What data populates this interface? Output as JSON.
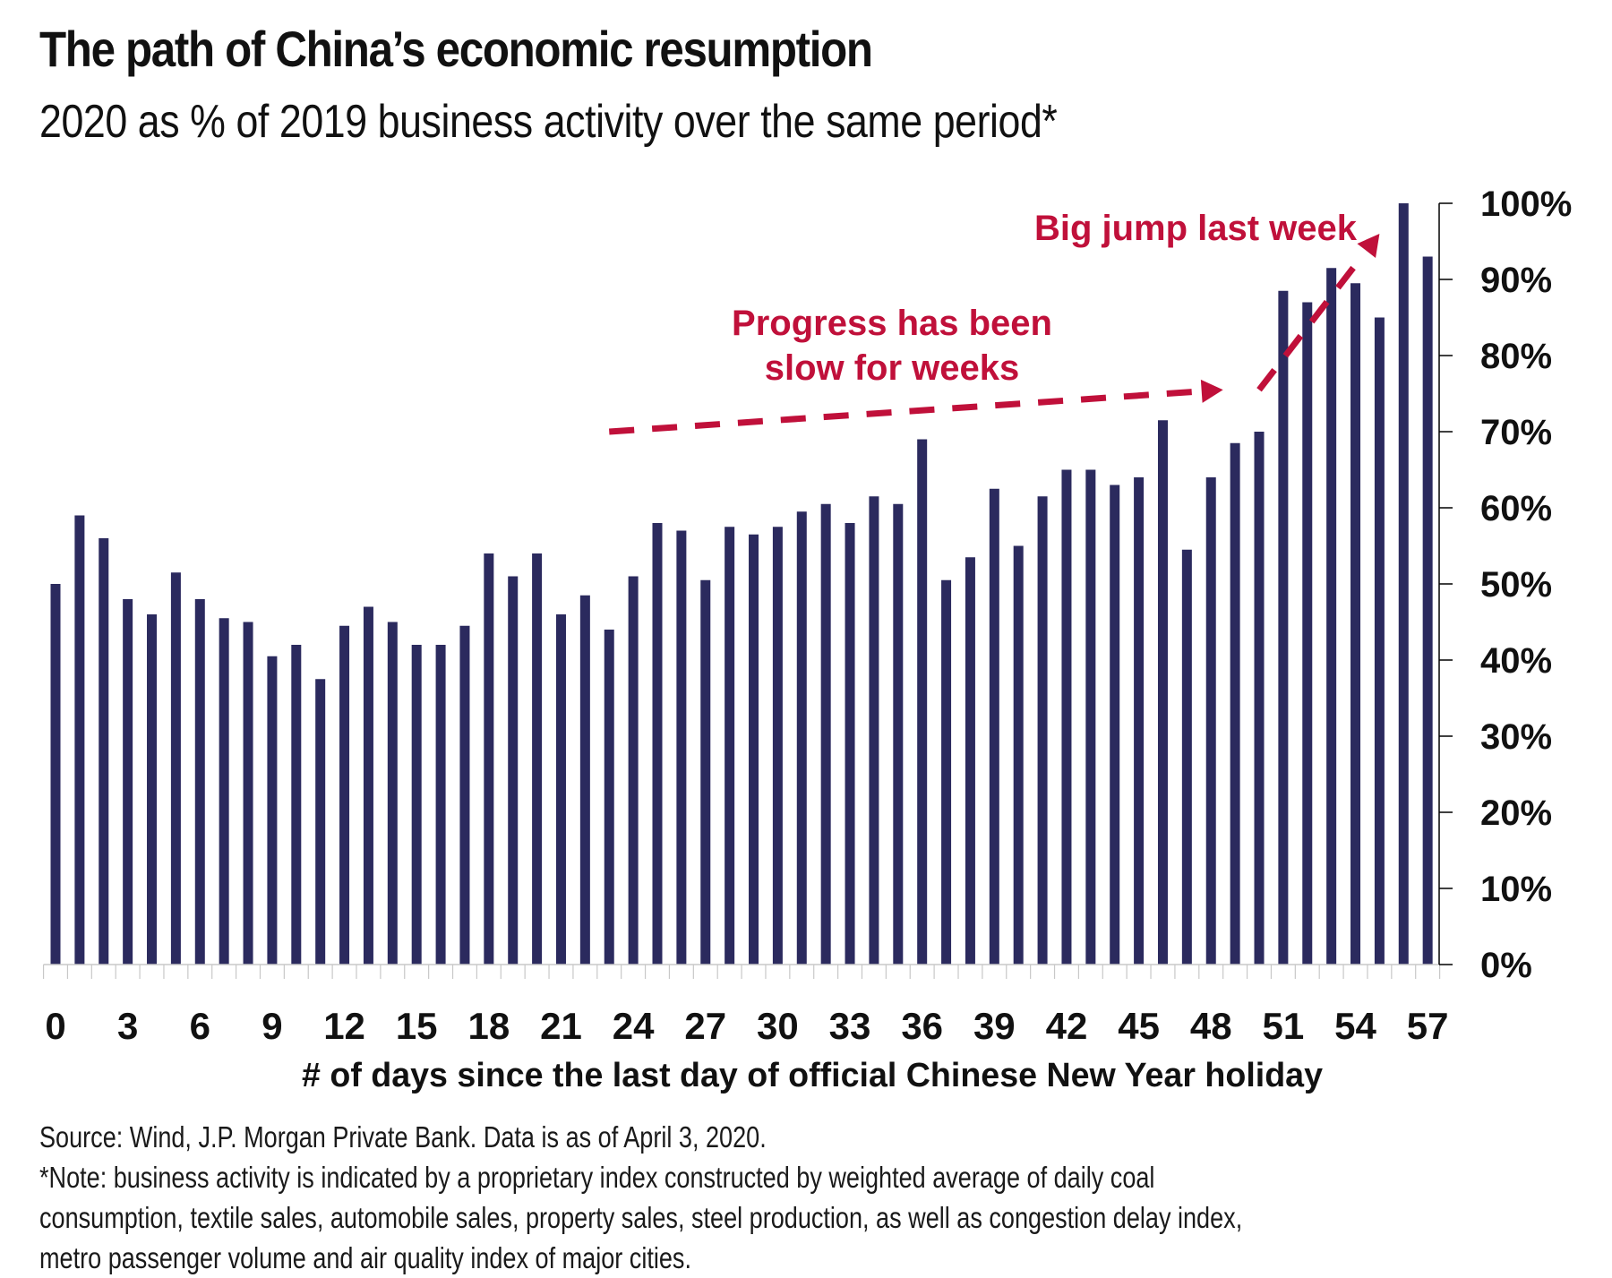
{
  "header": {
    "title": "The path of China’s economic resumption",
    "subtitle": "2020 as % of 2019 business activity over the same period*"
  },
  "colors": {
    "bar": "#2b2a5e",
    "annotation": "#c0103a",
    "axis": "#000000",
    "tick_minor": "#c8c8c8"
  },
  "chart_data": {
    "type": "bar",
    "title": "The path of China’s economic resumption",
    "subtitle": "2020 as % of 2019 business activity over the same period*",
    "xlabel": "# of days since the last day of official Chinese New Year holiday",
    "ylabel": "",
    "y_axis_side": "right",
    "ylim": [
      0,
      100
    ],
    "y_ticks": [
      0,
      10,
      20,
      30,
      40,
      50,
      60,
      70,
      80,
      90,
      100
    ],
    "y_tick_labels": [
      "0%",
      "10%",
      "20%",
      "30%",
      "40%",
      "50%",
      "60%",
      "70%",
      "80%",
      "90%",
      "100%"
    ],
    "x_tick_labels": [
      "0",
      "3",
      "6",
      "9",
      "12",
      "15",
      "18",
      "21",
      "24",
      "27",
      "30",
      "33",
      "36",
      "39",
      "42",
      "45",
      "48",
      "51",
      "54",
      "57"
    ],
    "x_tick_step": 3,
    "grid": false,
    "legend": "none",
    "categories": [
      0,
      1,
      2,
      3,
      4,
      5,
      6,
      7,
      8,
      9,
      10,
      11,
      12,
      13,
      14,
      15,
      16,
      17,
      18,
      19,
      20,
      21,
      22,
      23,
      24,
      25,
      26,
      27,
      28,
      29,
      30,
      31,
      32,
      33,
      34,
      35,
      36,
      37,
      38,
      39,
      40,
      41,
      42,
      43,
      44,
      45,
      46,
      47,
      48,
      49,
      50,
      51,
      52,
      53,
      54,
      55,
      56,
      57
    ],
    "values": [
      50,
      59,
      56,
      48,
      46,
      51.5,
      48,
      45.5,
      45,
      40.5,
      42,
      37.5,
      44.5,
      47,
      45,
      42,
      42,
      44.5,
      54,
      51,
      54,
      46,
      48.5,
      44,
      51,
      58,
      57,
      50.5,
      57.5,
      56.5,
      57.5,
      59.5,
      60.5,
      58,
      61.5,
      60.5,
      69,
      50.5,
      53.5,
      62.5,
      55,
      61.5,
      65,
      65,
      63,
      64,
      71.5,
      54.5,
      64,
      68.5,
      70,
      88.5,
      87,
      91.5,
      89.5,
      85,
      100,
      93
    ],
    "annotations": [
      {
        "text_lines": [
          "Progress has been",
          "slow for weeks"
        ],
        "arrow_from": {
          "x": 23,
          "y": 70
        },
        "arrow_to": {
          "x": 48.5,
          "y": 75.5
        },
        "style": "dashed-arrow"
      },
      {
        "text_lines": [
          "Big jump last week"
        ],
        "arrow_from": {
          "x": 50,
          "y": 75.5
        },
        "arrow_to": {
          "x": 55,
          "y": 96
        },
        "style": "dashed-arrow"
      }
    ]
  },
  "footer": {
    "source": "Source: Wind, J.P. Morgan Private Bank. Data is as of April 3, 2020.",
    "note_lines": [
      "*Note: business activity is indicated by a proprietary index constructed by weighted average of daily coal",
      "consumption, textile sales, automobile sales, property sales, steel production, as well as congestion delay index,",
      "metro passenger volume and air quality index of major cities."
    ]
  }
}
